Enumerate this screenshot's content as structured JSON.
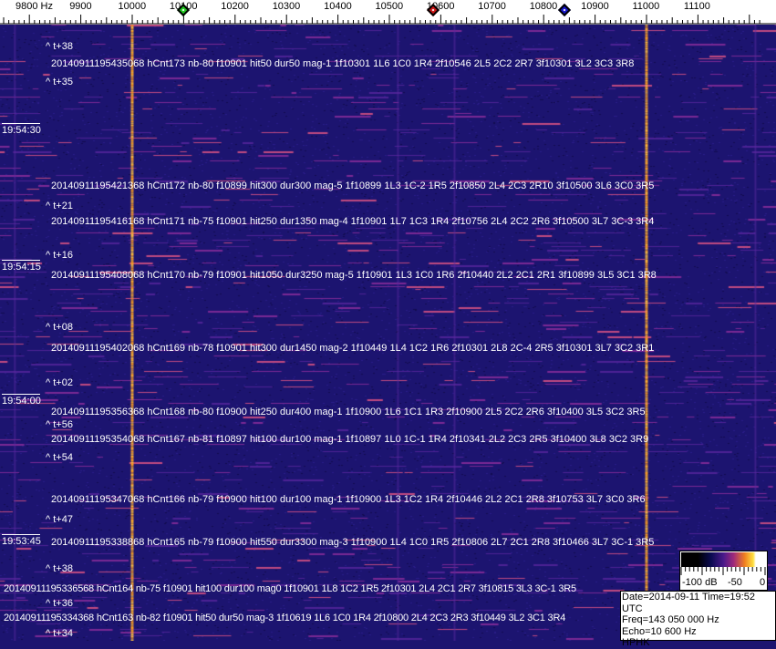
{
  "axis": {
    "unit_label": "9800 Hz",
    "labels": [
      "9900",
      "10000",
      "10100",
      "10200",
      "10300",
      "10400",
      "10500",
      "10600",
      "10700",
      "10800",
      "10900",
      "11000",
      "11100"
    ],
    "start_hz": 9800,
    "markers": [
      {
        "name": "green-marker",
        "freq_hz": 10100,
        "color": "#1fc81f"
      },
      {
        "name": "red-marker",
        "freq_hz": 10585,
        "color": "#c81414"
      },
      {
        "name": "blue-marker",
        "freq_hz": 10840,
        "color": "#1414c8"
      }
    ]
  },
  "colors": {
    "background": "#1c1470",
    "noise": "#3a2a9a",
    "streak": "#8a2a9a",
    "carrier": "#ffa020"
  },
  "carriers_hz": [
    10000,
    11000
  ],
  "offset_labels": [
    "^ t+38",
    "^ t+35",
    "^ t+21",
    "^ t+16",
    "^ t+08",
    "^ t+02",
    "^ t+56",
    "^ t+54",
    "^ t+47",
    "^ t+38",
    "^ t+36",
    "^ t+34"
  ],
  "time_labels": [
    "19:54:30",
    "19:54:15",
    "19:54:00",
    "19:53:45"
  ],
  "detections": [
    "20140911195435068 hCnt173 nb-80 f10901 hit50 dur50 mag-1 1f10301 1L6 1C0 1R4 2f10546 2L5 2C2 2R7 3f10301 3L2 3C3 3R8",
    "20140911195421368 hCnt172 nb-80 f10899 hit300 dur300 mag-5 1f10899 1L3 1C-2 1R5 2f10850 2L4 2C3 2R10 3f10500 3L6 3C0 3R5",
    "20140911195416168 hCnt171 nb-75 f10901 hit250 dur1350 mag-4 1f10901 1L7 1C3 1R4 2f10756 2L4 2C2 2R6 3f10500 3L7 3C-3 3R4",
    "20140911195408068 hCnt170 nb-79 f10901 hit1050 dur3250 mag-5 1f10901 1L3 1C0 1R6 2f10440 2L2 2C1 2R1 3f10899 3L5 3C1 3R8",
    "20140911195402068 hCnt169 nb-78 f10901 hit300 dur1450 mag-2 1f10449 1L4 1C2 1R6 2f10301 2L8 2C-4 2R5 3f10301 3L7 3C2 3R1",
    "20140911195356368 hCnt168 nb-80 f10900 hit250 dur400 mag-1 1f10900 1L6 1C1 1R3 2f10900 2L5 2C2 2R6 3f10400 3L5 3C2 3R5",
    "20140911195354068 hCnt167 nb-81 f10897 hit100 dur100 mag-1 1f10897 1L0 1C-1 1R4 2f10341 2L2 2C3 2R5 3f10400 3L8 3C2 3R9",
    "20140911195347068 hCnt166 nb-79 f10900 hit100 dur100 mag-1 1f10900 1L3 1C2 1R4 2f10446 2L2 2C1 2R8 3f10753 3L7 3C0 3R6",
    "20140911195338868 hCnt165 nb-79 f10900 hit550 dur3300 mag-3 1f10900 1L4 1C0 1R5 2f10806 2L7 2C1 2R8 3f10466 3L7 3C-1 3R5",
    "20140911195336568 hCnt164 nb-75 f10901 hit100 dur100 mag0 1f10901 1L8 1C2 1R5 2f10301 2L4 2C1 2R7 3f10815 3L3 3C-1 3R5",
    "20140911195334368 hCnt163 nb-82 f10901 hit50 dur50 mag-3 1f10619 1L6 1C0 1R4 2f10800 2L4 2C3 2R3 3f10449 3L2 3C1 3R4"
  ],
  "colorbar": {
    "labels": [
      "-100 dB",
      "-50",
      "0"
    ],
    "range_db": [
      -100,
      0
    ]
  },
  "info": {
    "date_time": "Date=2014-09-11 Time=19:52 UTC",
    "freq": "Freq=143 050 000 Hz",
    "echo": "Echo=10 600 Hz",
    "station": "HPHK"
  }
}
